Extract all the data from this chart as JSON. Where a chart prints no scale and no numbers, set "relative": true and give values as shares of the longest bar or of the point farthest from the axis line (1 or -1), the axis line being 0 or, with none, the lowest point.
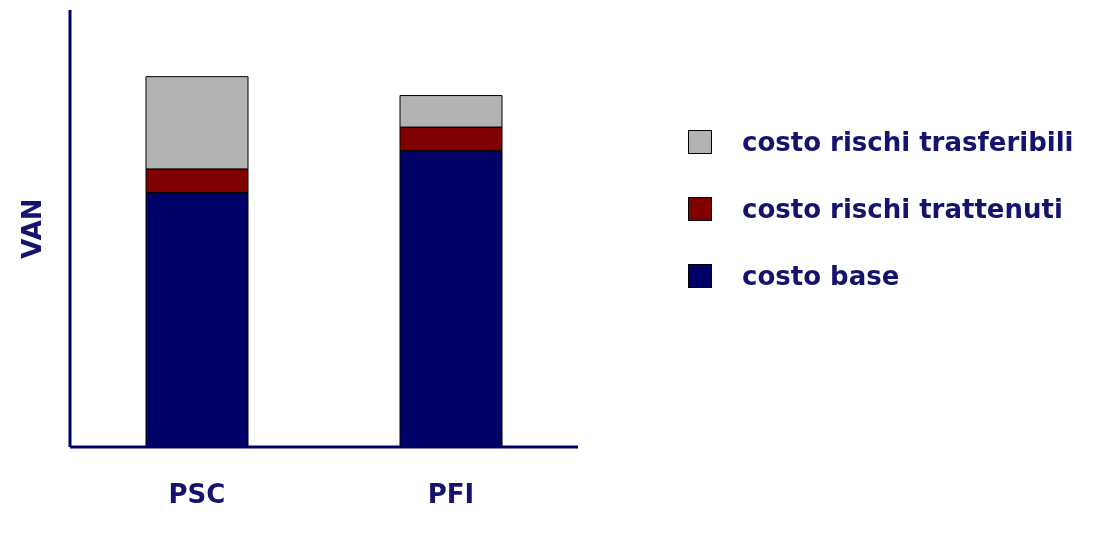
{
  "chart_data": {
    "type": "bar",
    "stacked": true,
    "relative": true,
    "ylabel": "VAN",
    "categories": [
      "PSC",
      "PFI"
    ],
    "legend": "right",
    "series": [
      {
        "name": "costo base",
        "color": "#000066",
        "values": [
          0.687,
          0.8
        ]
      },
      {
        "name": "costo rischi trattenuti",
        "color": "#800000",
        "values": [
          0.064,
          0.064
        ]
      },
      {
        "name": "costo rischi trasferibili",
        "color": "#b3b3b3",
        "values": [
          0.249,
          0.085
        ]
      }
    ]
  }
}
